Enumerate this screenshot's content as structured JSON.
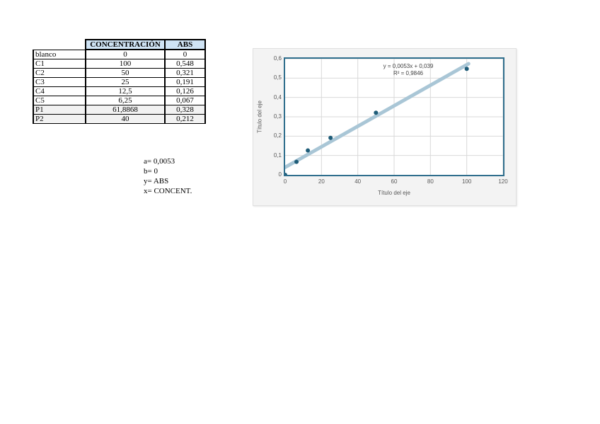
{
  "table": {
    "headers": [
      "",
      "CONCENTRACIÓN",
      "ABS"
    ],
    "header_fill": "#cfe3f4",
    "shaded_fill": "#f2f2f2",
    "rows": [
      {
        "label": "blanco",
        "conc": "0",
        "abs": "0",
        "shaded": false
      },
      {
        "label": "C1",
        "conc": "100",
        "abs": "0,548",
        "shaded": false
      },
      {
        "label": "C2",
        "conc": "50",
        "abs": "0,321",
        "shaded": false
      },
      {
        "label": "C3",
        "conc": "25",
        "abs": "0,191",
        "shaded": false
      },
      {
        "label": "C4",
        "conc": "12,5",
        "abs": "0,126",
        "shaded": false
      },
      {
        "label": "C5",
        "conc": "6,25",
        "abs": "0,067",
        "shaded": false
      },
      {
        "label": "P1",
        "conc": "61,8868",
        "abs": "0,328",
        "shaded": true
      },
      {
        "label": "P2",
        "conc": "40",
        "abs": "0,212",
        "shaded": true
      }
    ]
  },
  "notes": {
    "lines": [
      "a= 0,0053",
      "b= 0",
      "y= ABS",
      "x= CONCENT."
    ]
  },
  "chart_data": {
    "type": "scatter",
    "title": "",
    "xlabel": "Título del eje",
    "ylabel": "Título del eje",
    "xlim": [
      0,
      120
    ],
    "ylim": [
      0,
      0.6
    ],
    "grid": true,
    "legend_position": "none",
    "x_ticks": [
      {
        "label": "0",
        "v": 0
      },
      {
        "label": "20",
        "v": 20
      },
      {
        "label": "40",
        "v": 40
      },
      {
        "label": "60",
        "v": 60
      },
      {
        "label": "80",
        "v": 80
      },
      {
        "label": "100",
        "v": 100
      },
      {
        "label": "120",
        "v": 120
      }
    ],
    "y_ticks": [
      {
        "label": "0",
        "v": 0
      },
      {
        "label": "0,1",
        "v": 0.1
      },
      {
        "label": "0,2",
        "v": 0.2
      },
      {
        "label": "0,3",
        "v": 0.3
      },
      {
        "label": "0,4",
        "v": 0.4
      },
      {
        "label": "0,5",
        "v": 0.5
      },
      {
        "label": "0,6",
        "v": 0.6
      }
    ],
    "points": [
      {
        "x": 0,
        "y": 0
      },
      {
        "x": 6.25,
        "y": 0.067
      },
      {
        "x": 12.5,
        "y": 0.126
      },
      {
        "x": 25,
        "y": 0.191
      },
      {
        "x": 50,
        "y": 0.321
      },
      {
        "x": 100,
        "y": 0.548
      }
    ],
    "trendline": {
      "slope": 0.0053,
      "intercept": 0.039,
      "x_start": 0,
      "x_end": 101,
      "equation": "y = 0,0053x + 0,039",
      "r2": "R² = 0,9846"
    },
    "colors": {
      "point": "#1e5c78",
      "trend": "#a9c6d6",
      "plot_border": "#2f6e8d",
      "grid": "#d9d9d9",
      "tick_text": "#595959"
    }
  }
}
